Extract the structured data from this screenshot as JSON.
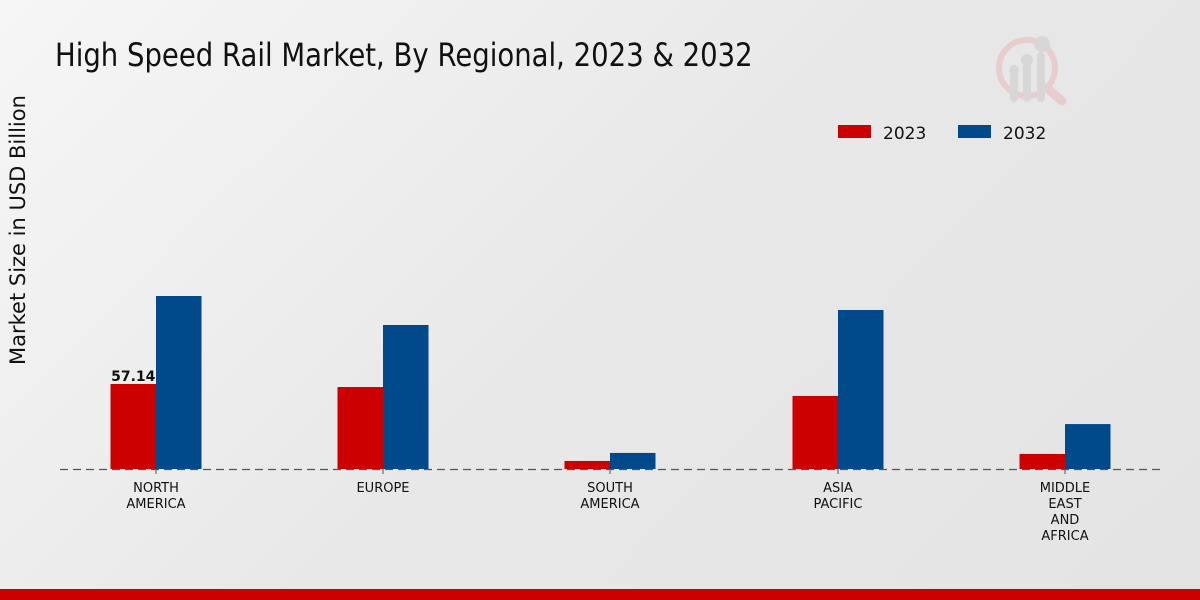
{
  "chart_data": {
    "type": "bar",
    "title": "High Speed Rail Market, By Regional, 2023 & 2032",
    "xlabel": "",
    "ylabel": "Market Size in USD Billion",
    "categories": [
      [
        "NORTH",
        "AMERICA"
      ],
      [
        "EUROPE"
      ],
      [
        "SOUTH",
        "AMERICA"
      ],
      [
        "ASIA",
        "PACIFIC"
      ],
      [
        "MIDDLE",
        "EAST",
        "AND",
        "AFRICA"
      ]
    ],
    "series": [
      {
        "name": "2023",
        "color": "#cc0000",
        "values": [
          57.14,
          55.1,
          5.4,
          49.1,
          10.1
        ]
      },
      {
        "name": "2032",
        "color": "#004a8c",
        "values": [
          116.3,
          96.8,
          10.8,
          106.9,
          30.2
        ]
      }
    ],
    "data_labels": [
      {
        "series": 0,
        "index": 0,
        "text": "57.14"
      }
    ],
    "ylim": [
      0,
      180
    ],
    "grid": false,
    "legend_position": "top-right"
  }
}
